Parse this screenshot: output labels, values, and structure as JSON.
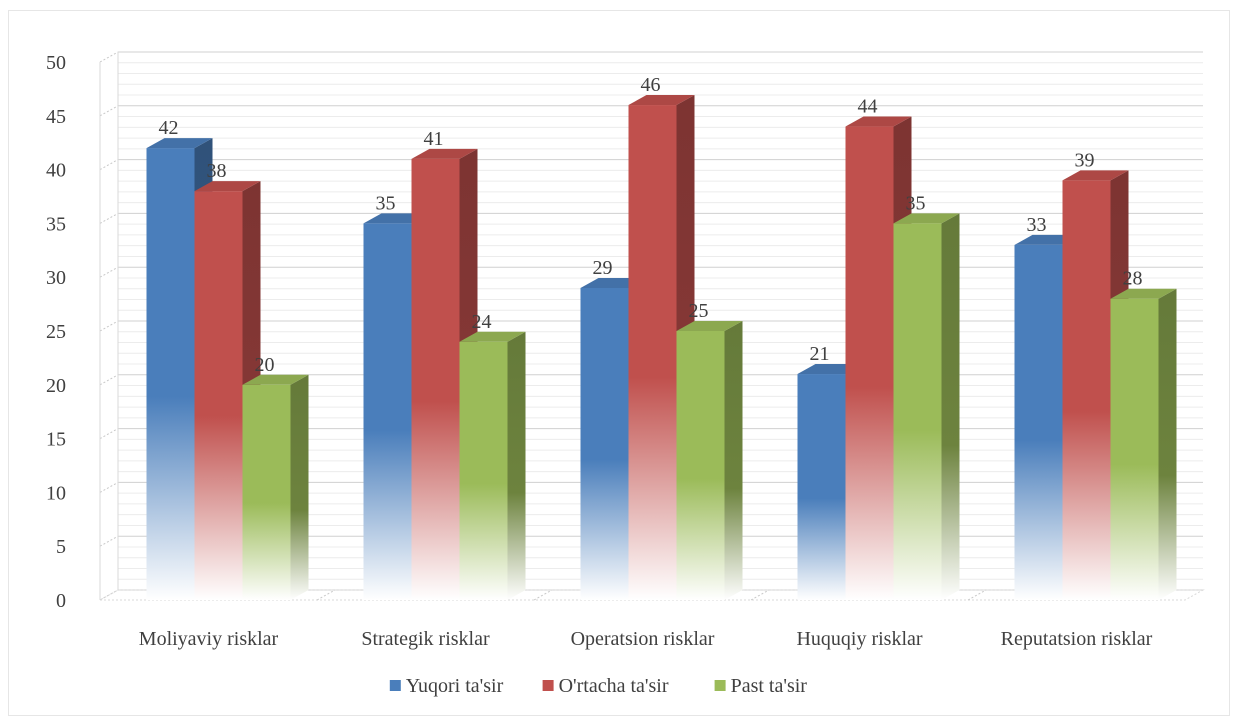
{
  "chart_data": {
    "type": "bar",
    "title": "",
    "xlabel": "",
    "ylabel": "",
    "categories": [
      "Moliyaviy risklar",
      "Strategik risklar",
      "Operatsion risklar",
      "Huquqiy risklar",
      "Reputatsion risklar"
    ],
    "series": [
      {
        "name": "Yuqori ta'sir",
        "values": [
          42,
          35,
          29,
          21,
          33
        ],
        "color": "#4a7ebb"
      },
      {
        "name": "O'rtacha ta'sir",
        "values": [
          38,
          41,
          46,
          44,
          39
        ],
        "color": "#c0504d"
      },
      {
        "name": "Past ta'sir",
        "values": [
          20,
          24,
          25,
          35,
          28
        ],
        "color": "#9bbb59"
      }
    ],
    "ylim": [
      0,
      50
    ],
    "yticks": [
      0,
      5,
      10,
      15,
      20,
      25,
      30,
      35,
      40,
      45,
      50
    ],
    "grid": true,
    "legend_position": "bottom",
    "style": "3d-clustered-column"
  }
}
